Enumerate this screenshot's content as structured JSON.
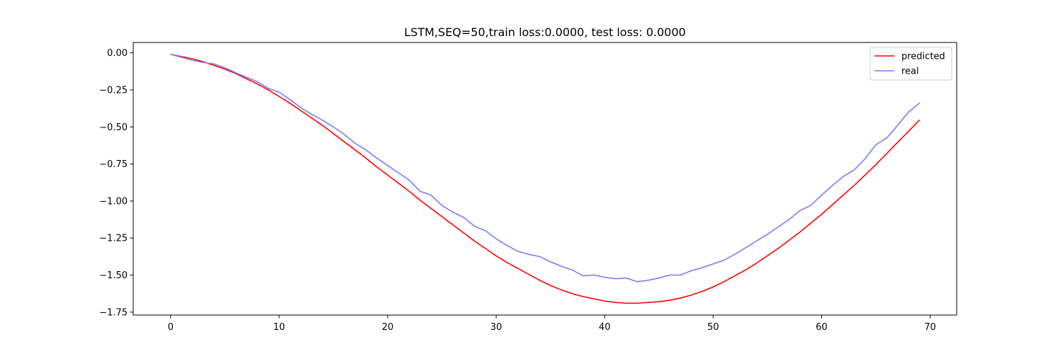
{
  "chart_data": {
    "type": "line",
    "title": "LSTM,SEQ=50,train loss:0.0000, test loss: 0.0000",
    "xlabel": "",
    "ylabel": "",
    "xlim": [
      -3.45,
      72.45
    ],
    "ylim": [
      -1.77,
      0.07
    ],
    "xticks": [
      0,
      10,
      20,
      30,
      40,
      50,
      60,
      70
    ],
    "yticks": [
      0.0,
      -0.25,
      -0.5,
      -0.75,
      -1.0,
      -1.25,
      -1.5,
      -1.75
    ],
    "ytick_labels": [
      "0.00",
      "−0.25",
      "−0.50",
      "−0.75",
      "−1.00",
      "−1.25",
      "−1.50",
      "−1.75"
    ],
    "legend_position": "top-right",
    "grid": false,
    "x": [
      0,
      1,
      2,
      3,
      4,
      5,
      6,
      7,
      8,
      9,
      10,
      11,
      12,
      13,
      14,
      15,
      16,
      17,
      18,
      19,
      20,
      21,
      22,
      23,
      24,
      25,
      26,
      27,
      28,
      29,
      30,
      31,
      32,
      33,
      34,
      35,
      36,
      37,
      38,
      39,
      40,
      41,
      42,
      43,
      44,
      45,
      46,
      47,
      48,
      49,
      50,
      51,
      52,
      53,
      54,
      55,
      56,
      57,
      58,
      59,
      60,
      61,
      62,
      63,
      64,
      65,
      66,
      67,
      68,
      69
    ],
    "series": [
      {
        "name": "predicted",
        "color": "#ff0000",
        "values": [
          -0.01,
          -0.025,
          -0.04,
          -0.06,
          -0.085,
          -0.11,
          -0.14,
          -0.175,
          -0.21,
          -0.25,
          -0.295,
          -0.34,
          -0.39,
          -0.44,
          -0.49,
          -0.545,
          -0.6,
          -0.655,
          -0.71,
          -0.77,
          -0.825,
          -0.88,
          -0.935,
          -0.995,
          -1.05,
          -1.105,
          -1.16,
          -1.215,
          -1.27,
          -1.32,
          -1.37,
          -1.415,
          -1.455,
          -1.495,
          -1.535,
          -1.57,
          -1.6,
          -1.625,
          -1.645,
          -1.66,
          -1.675,
          -1.685,
          -1.69,
          -1.69,
          -1.685,
          -1.68,
          -1.67,
          -1.655,
          -1.635,
          -1.61,
          -1.58,
          -1.545,
          -1.505,
          -1.465,
          -1.42,
          -1.37,
          -1.32,
          -1.265,
          -1.21,
          -1.15,
          -1.09,
          -1.025,
          -0.96,
          -0.895,
          -0.825,
          -0.755,
          -0.68,
          -0.605,
          -0.53,
          -0.455
        ]
      },
      {
        "name": "real",
        "color": "#7b7bff",
        "values": [
          -0.01,
          -0.03,
          -0.05,
          -0.065,
          -0.075,
          -0.1,
          -0.135,
          -0.165,
          -0.195,
          -0.24,
          -0.265,
          -0.315,
          -0.37,
          -0.415,
          -0.455,
          -0.5,
          -0.55,
          -0.61,
          -0.655,
          -0.71,
          -0.76,
          -0.81,
          -0.86,
          -0.935,
          -0.96,
          -1.03,
          -1.075,
          -1.11,
          -1.17,
          -1.2,
          -1.255,
          -1.3,
          -1.34,
          -1.36,
          -1.375,
          -1.41,
          -1.44,
          -1.465,
          -1.505,
          -1.5,
          -1.515,
          -1.525,
          -1.52,
          -1.545,
          -1.535,
          -1.52,
          -1.5,
          -1.5,
          -1.47,
          -1.45,
          -1.425,
          -1.4,
          -1.36,
          -1.315,
          -1.27,
          -1.225,
          -1.175,
          -1.125,
          -1.065,
          -1.03,
          -0.96,
          -0.895,
          -0.835,
          -0.79,
          -0.715,
          -0.62,
          -0.575,
          -0.49,
          -0.4,
          -0.34
        ]
      }
    ]
  }
}
